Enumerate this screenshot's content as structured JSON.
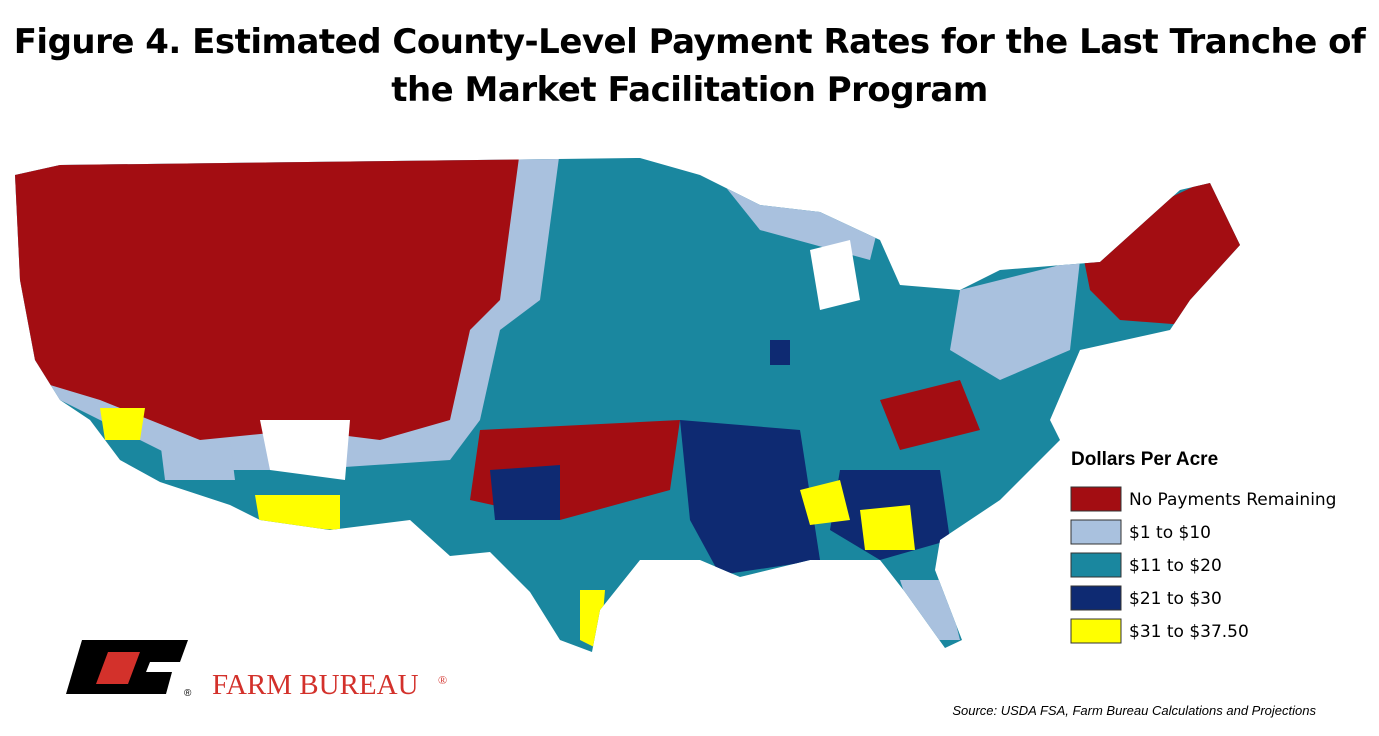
{
  "header": {
    "title_lines": [
      "Figure 4. Estimated County-Level Payment Rates for the Last Tranche of",
      "the Market Facilitation Program"
    ]
  },
  "legend": {
    "title": "Dollars Per Acre",
    "items": [
      {
        "label": "No Payments Remaining",
        "color": "#a30d12"
      },
      {
        "label": "$1 to $10",
        "color": "#a9c1de"
      },
      {
        "label": "$11 to $20",
        "color": "#1a879f"
      },
      {
        "label": "$21 to $30",
        "color": "#0e2a72"
      },
      {
        "label": "$31 to $37.50",
        "color": "#ffff00"
      }
    ]
  },
  "logo": {
    "brand": "FARM BUREAU",
    "mark": "®"
  },
  "footer": {
    "source": "Source: USDA FSA, Farm Bureau Calculations and Projections"
  }
}
